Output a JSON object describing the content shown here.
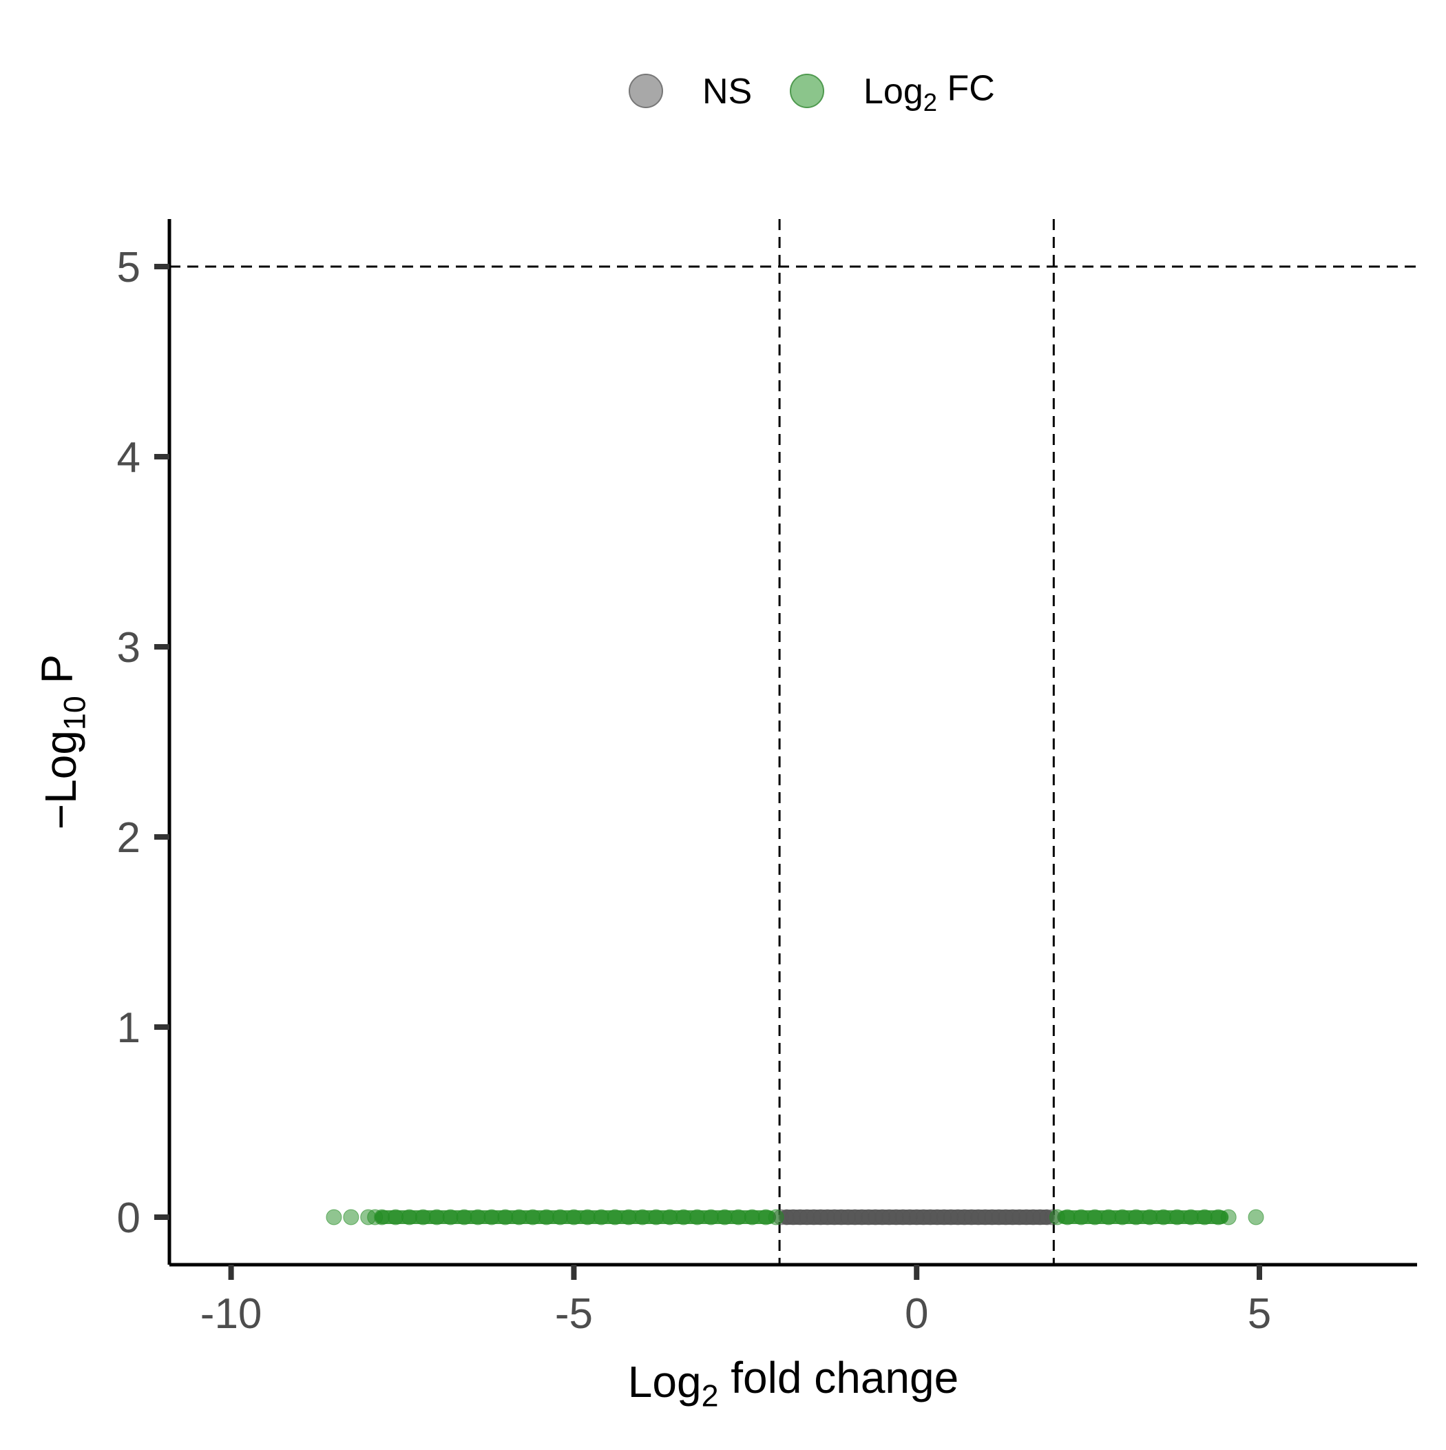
{
  "chart_data": {
    "type": "scatter",
    "title": "",
    "xlabel": {
      "main": "Log",
      "sub": "2",
      "tail": " fold change"
    },
    "ylabel": {
      "main": "−Log",
      "sub": "10",
      "tail": " P"
    },
    "xlim": [
      -10.9,
      7.3
    ],
    "ylim": [
      -0.25,
      5.25
    ],
    "xticks": [
      -10,
      -5,
      0,
      5
    ],
    "xtick_labels": [
      "-10",
      "-5",
      "0",
      "5"
    ],
    "yticks": [
      0,
      1,
      2,
      3,
      4,
      5
    ],
    "ytick_labels": [
      "0",
      "1",
      "2",
      "3",
      "4",
      "5"
    ],
    "grid": false,
    "legend_position": "top",
    "cutoffs": {
      "fc": [
        -2,
        2
      ],
      "p": 5
    },
    "legend": [
      {
        "key": "ns",
        "label": {
          "main": "NS",
          "sub": "",
          "tail": ""
        },
        "color": "#999999"
      },
      {
        "key": "fc",
        "label": {
          "main": "Log",
          "sub": "2",
          "tail": " FC"
        },
        "color": "#77bb77"
      }
    ],
    "series": [
      {
        "name": "NS",
        "color": "#555555",
        "x_range": [
          -2.0,
          2.0
        ],
        "y_value": 0,
        "points": [
          [
            -1.98,
            0
          ],
          [
            -1.9,
            0
          ],
          [
            -1.8,
            0
          ],
          [
            -1.7,
            0
          ],
          [
            -1.6,
            0
          ],
          [
            -1.5,
            0
          ],
          [
            -1.4,
            0
          ],
          [
            -1.3,
            0
          ],
          [
            -1.2,
            0
          ],
          [
            -1.1,
            0
          ],
          [
            -1.0,
            0
          ],
          [
            -0.9,
            0
          ],
          [
            -0.8,
            0
          ],
          [
            -0.7,
            0
          ],
          [
            -0.6,
            0
          ],
          [
            -0.5,
            0
          ],
          [
            -0.4,
            0
          ],
          [
            -0.3,
            0
          ],
          [
            -0.2,
            0
          ],
          [
            -0.1,
            0
          ],
          [
            0.0,
            0
          ],
          [
            0.1,
            0
          ],
          [
            0.2,
            0
          ],
          [
            0.3,
            0
          ],
          [
            0.4,
            0
          ],
          [
            0.5,
            0
          ],
          [
            0.6,
            0
          ],
          [
            0.7,
            0
          ],
          [
            0.8,
            0
          ],
          [
            0.9,
            0
          ],
          [
            1.0,
            0
          ],
          [
            1.1,
            0
          ],
          [
            1.2,
            0
          ],
          [
            1.3,
            0
          ],
          [
            1.4,
            0
          ],
          [
            1.5,
            0
          ],
          [
            1.6,
            0
          ],
          [
            1.7,
            0
          ],
          [
            1.8,
            0
          ],
          [
            1.9,
            0
          ],
          [
            1.98,
            0
          ]
        ]
      },
      {
        "name": "Log2 FC",
        "color": "#228B22",
        "x_range": [
          -8.5,
          4.95
        ],
        "y_value": 0,
        "points": [
          [
            -8.5,
            0
          ],
          [
            -8.25,
            0
          ],
          [
            -8.0,
            0
          ],
          [
            -7.9,
            0
          ],
          [
            -7.8,
            0
          ],
          [
            -7.6,
            0
          ],
          [
            -7.4,
            0
          ],
          [
            -7.2,
            0
          ],
          [
            -7.0,
            0
          ],
          [
            -6.8,
            0
          ],
          [
            -6.6,
            0
          ],
          [
            -6.4,
            0
          ],
          [
            -6.2,
            0
          ],
          [
            -6.0,
            0
          ],
          [
            -5.8,
            0
          ],
          [
            -5.6,
            0
          ],
          [
            -5.4,
            0
          ],
          [
            -5.2,
            0
          ],
          [
            -5.0,
            0
          ],
          [
            -4.8,
            0
          ],
          [
            -4.6,
            0
          ],
          [
            -4.4,
            0
          ],
          [
            -4.2,
            0
          ],
          [
            -4.0,
            0
          ],
          [
            -3.8,
            0
          ],
          [
            -3.6,
            0
          ],
          [
            -3.4,
            0
          ],
          [
            -3.2,
            0
          ],
          [
            -3.0,
            0
          ],
          [
            -2.8,
            0
          ],
          [
            -2.6,
            0
          ],
          [
            -2.4,
            0
          ],
          [
            -2.2,
            0
          ],
          [
            -2.05,
            0
          ],
          [
            2.05,
            0
          ],
          [
            2.2,
            0
          ],
          [
            2.4,
            0
          ],
          [
            2.6,
            0
          ],
          [
            2.8,
            0
          ],
          [
            3.0,
            0
          ],
          [
            3.2,
            0
          ],
          [
            3.4,
            0
          ],
          [
            3.6,
            0
          ],
          [
            3.8,
            0
          ],
          [
            4.0,
            0
          ],
          [
            4.2,
            0
          ],
          [
            4.4,
            0
          ],
          [
            4.55,
            0
          ],
          [
            4.95,
            0
          ]
        ]
      }
    ]
  }
}
